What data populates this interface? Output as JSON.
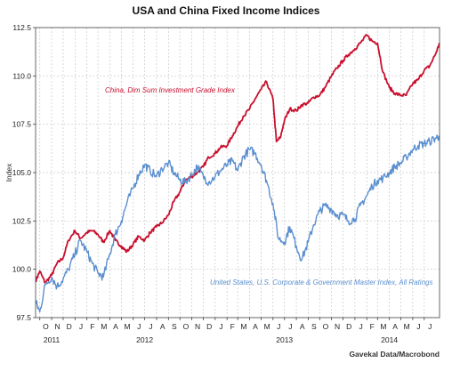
{
  "chart_data": {
    "type": "line",
    "title": "USA and China Fixed Income Indices",
    "ylabel": "Index",
    "xlim": [
      "2011-09-20",
      "2014-08-10"
    ],
    "ylim": [
      97.5,
      112.5
    ],
    "yticks": [
      "97.5",
      "100.0",
      "102.5",
      "105.0",
      "107.5",
      "110.0",
      "112.5"
    ],
    "xticks": {
      "months": [
        "O",
        "N",
        "D",
        "J",
        "F",
        "M",
        "A",
        "M",
        "J",
        "J",
        "A",
        "S",
        "O",
        "N",
        "D",
        "J",
        "F",
        "M",
        "A",
        "M",
        "J",
        "J",
        "A",
        "S",
        "O",
        "N",
        "D",
        "J",
        "F",
        "M",
        "A",
        "M",
        "J",
        "J"
      ],
      "dates": [
        "2011-10-01",
        "2011-11-01",
        "2011-12-01",
        "2012-01-01",
        "2012-02-01",
        "2012-03-01",
        "2012-04-01",
        "2012-05-01",
        "2012-06-01",
        "2012-07-01",
        "2012-08-01",
        "2012-09-01",
        "2012-10-01",
        "2012-11-01",
        "2012-12-01",
        "2013-01-01",
        "2013-02-01",
        "2013-03-01",
        "2013-04-01",
        "2013-05-01",
        "2013-06-01",
        "2013-07-01",
        "2013-08-01",
        "2013-09-01",
        "2013-10-01",
        "2013-11-01",
        "2013-12-01",
        "2014-01-01",
        "2014-02-01",
        "2014-03-01",
        "2014-04-01",
        "2014-05-01",
        "2014-06-01",
        "2014-07-01"
      ],
      "years": [
        {
          "label": "2011",
          "date": "2011-11-01"
        },
        {
          "label": "2012",
          "date": "2012-07-01"
        },
        {
          "label": "2013",
          "date": "2013-07-01"
        },
        {
          "label": "2014",
          "date": "2014-04-01"
        }
      ]
    },
    "grid": true,
    "series": [
      {
        "name": "China, Dim Sum Investment Grade Index",
        "color": "#c8102e",
        "x": [
          "2011-09-20",
          "2011-10-01",
          "2011-10-15",
          "2011-11-01",
          "2011-11-15",
          "2011-12-01",
          "2011-12-15",
          "2012-01-01",
          "2012-01-15",
          "2012-02-01",
          "2012-02-15",
          "2012-03-01",
          "2012-03-15",
          "2012-04-01",
          "2012-04-15",
          "2012-05-01",
          "2012-05-15",
          "2012-06-01",
          "2012-06-15",
          "2012-07-01",
          "2012-07-15",
          "2012-08-01",
          "2012-08-15",
          "2012-09-01",
          "2012-09-15",
          "2012-10-01",
          "2012-10-15",
          "2012-11-01",
          "2012-11-15",
          "2012-12-01",
          "2012-12-15",
          "2013-01-01",
          "2013-01-15",
          "2013-02-01",
          "2013-02-15",
          "2013-03-01",
          "2013-03-15",
          "2013-04-01",
          "2013-04-15",
          "2013-05-01",
          "2013-05-15",
          "2013-06-01",
          "2013-06-10",
          "2013-06-20",
          "2013-07-01",
          "2013-07-15",
          "2013-08-01",
          "2013-08-15",
          "2013-09-01",
          "2013-09-15",
          "2013-10-01",
          "2013-10-15",
          "2013-11-01",
          "2013-11-15",
          "2013-12-01",
          "2013-12-15",
          "2014-01-01",
          "2014-01-15",
          "2014-02-01",
          "2014-02-15",
          "2014-03-01",
          "2014-03-15",
          "2014-04-01",
          "2014-04-15",
          "2014-05-01",
          "2014-05-15",
          "2014-06-01",
          "2014-06-15",
          "2014-07-01",
          "2014-07-15",
          "2014-08-01",
          "2014-08-10"
        ],
        "y": [
          99.4,
          99.9,
          99.3,
          99.7,
          100.3,
          100.6,
          101.5,
          102.0,
          101.6,
          101.9,
          102.0,
          101.8,
          101.4,
          102.0,
          101.5,
          101.2,
          100.9,
          101.3,
          101.7,
          101.5,
          101.9,
          102.2,
          102.4,
          102.8,
          103.5,
          104.0,
          104.6,
          104.8,
          105.0,
          105.3,
          105.8,
          106.0,
          106.3,
          106.4,
          106.9,
          107.4,
          107.9,
          108.3,
          108.8,
          109.3,
          109.7,
          108.8,
          106.6,
          106.8,
          107.7,
          108.3,
          108.2,
          108.5,
          108.6,
          108.9,
          109.0,
          109.4,
          110.0,
          110.4,
          110.8,
          111.1,
          111.4,
          111.7,
          112.1,
          111.8,
          111.7,
          110.2,
          109.4,
          109.1,
          109.0,
          109.0,
          109.6,
          109.8,
          110.3,
          110.5,
          111.2,
          111.7
        ]
      },
      {
        "name": "United States, U.S. Corporate & Government Master Index, All Ratings",
        "color": "#5b8fcf",
        "x": [
          "2011-09-20",
          "2011-10-01",
          "2011-10-15",
          "2011-11-01",
          "2011-11-15",
          "2011-12-01",
          "2011-12-15",
          "2012-01-01",
          "2012-01-15",
          "2012-02-01",
          "2012-02-15",
          "2012-03-01",
          "2012-03-15",
          "2012-04-01",
          "2012-04-15",
          "2012-05-01",
          "2012-05-15",
          "2012-06-01",
          "2012-06-15",
          "2012-07-01",
          "2012-07-15",
          "2012-08-01",
          "2012-08-15",
          "2012-09-01",
          "2012-09-15",
          "2012-10-01",
          "2012-10-15",
          "2012-11-01",
          "2012-11-15",
          "2012-12-01",
          "2012-12-15",
          "2013-01-01",
          "2013-01-15",
          "2013-02-01",
          "2013-02-15",
          "2013-03-01",
          "2013-03-15",
          "2013-04-01",
          "2013-04-15",
          "2013-05-01",
          "2013-05-15",
          "2013-06-01",
          "2013-06-15",
          "2013-07-01",
          "2013-07-15",
          "2013-08-01",
          "2013-08-15",
          "2013-09-01",
          "2013-09-15",
          "2013-10-01",
          "2013-10-15",
          "2013-11-01",
          "2013-11-15",
          "2013-12-01",
          "2013-12-15",
          "2014-01-01",
          "2014-01-15",
          "2014-02-01",
          "2014-02-15",
          "2014-03-01",
          "2014-03-15",
          "2014-04-01",
          "2014-04-15",
          "2014-05-01",
          "2014-05-15",
          "2014-06-01",
          "2014-06-15",
          "2014-07-01",
          "2014-07-15",
          "2014-08-01",
          "2014-08-10"
        ],
        "y": [
          98.3,
          97.8,
          99.2,
          99.6,
          99.1,
          99.5,
          100.0,
          100.8,
          101.5,
          100.9,
          100.3,
          99.8,
          99.6,
          100.8,
          101.8,
          102.5,
          103.4,
          104.2,
          104.9,
          105.4,
          105.1,
          104.8,
          105.2,
          105.5,
          105.0,
          104.6,
          104.5,
          104.9,
          105.3,
          104.8,
          104.5,
          104.8,
          105.1,
          105.4,
          105.6,
          105.1,
          105.8,
          106.2,
          106.0,
          105.4,
          104.6,
          103.4,
          101.6,
          101.4,
          102.2,
          101.2,
          100.5,
          101.4,
          102.3,
          103.0,
          103.3,
          103.1,
          102.8,
          102.8,
          102.5,
          102.6,
          103.3,
          103.8,
          104.3,
          104.6,
          104.7,
          105.0,
          105.3,
          105.5,
          105.8,
          106.2,
          106.4,
          106.5,
          106.6,
          106.8,
          106.9
        ]
      }
    ],
    "annotations": {
      "china": "China, Dim Sum Investment Grade Index",
      "usa": "United States, U.S. Corporate & Government Master Index, All Ratings"
    },
    "source": "Gavekal Data/Macrobond"
  }
}
